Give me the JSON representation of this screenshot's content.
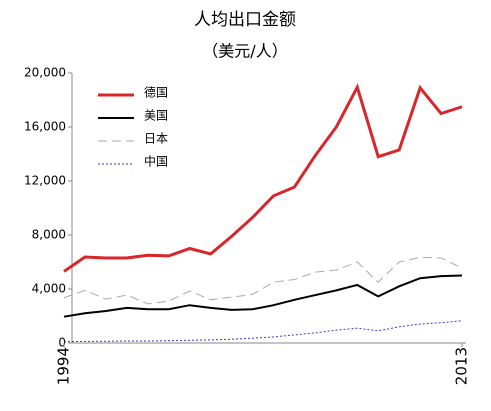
{
  "chart_data": {
    "type": "line",
    "title": "人均出口金额",
    "subtitle": "（美元/人）",
    "x": [
      1994,
      1995,
      1996,
      1997,
      1998,
      1999,
      2000,
      2001,
      2002,
      2003,
      2004,
      2005,
      2006,
      2007,
      2008,
      2009,
      2010,
      2011,
      2012,
      2013
    ],
    "xlim": [
      1994,
      2013
    ],
    "xticks": [
      1994,
      2013
    ],
    "ylim": [
      0,
      20000
    ],
    "yticks": [
      {
        "value": 0,
        "label": "0"
      },
      {
        "value": 4000,
        "label": "4,000"
      },
      {
        "value": 8000,
        "label": "8,000"
      },
      {
        "value": 12000,
        "label": "12,000"
      },
      {
        "value": 16000,
        "label": "16,000"
      },
      {
        "value": 20000,
        "label": "20,000"
      }
    ],
    "grid": false,
    "legend": "upper left",
    "series": [
      {
        "name": "德国",
        "color": "#d9262a",
        "line_style": "solid",
        "values": [
          5300,
          6370,
          6300,
          6300,
          6500,
          6450,
          7000,
          6600,
          7900,
          9300,
          10900,
          11550,
          13900,
          16000,
          18950,
          13800,
          14300,
          18900,
          17000,
          17500
        ]
      },
      {
        "name": "美国",
        "color": "#000000",
        "line_style": "solid",
        "values": [
          1950,
          2200,
          2370,
          2600,
          2500,
          2500,
          2800,
          2600,
          2450,
          2500,
          2800,
          3200,
          3550,
          3900,
          4300,
          3450,
          4200,
          4800,
          4950,
          5000
        ]
      },
      {
        "name": "日本",
        "color": "#aaaaaa",
        "line_style": "dashed",
        "values": [
          3350,
          3900,
          3250,
          3550,
          2900,
          3100,
          3850,
          3200,
          3400,
          3600,
          4500,
          4700,
          5250,
          5400,
          6000,
          4500,
          6000,
          6350,
          6300,
          5550
        ]
      },
      {
        "name": "中国",
        "color": "#3a3acc",
        "line_style": "dotted",
        "values": [
          100,
          120,
          130,
          150,
          150,
          170,
          200,
          230,
          280,
          350,
          450,
          600,
          750,
          950,
          1100,
          900,
          1200,
          1400,
          1500,
          1650
        ]
      }
    ]
  }
}
